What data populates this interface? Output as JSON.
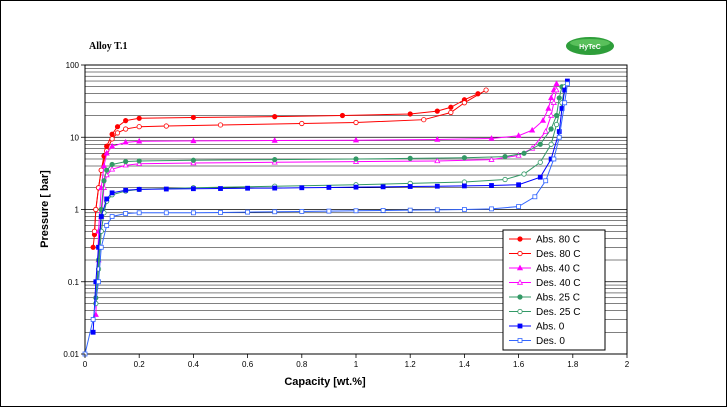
{
  "chart_data": {
    "type": "scatter",
    "title": "Alloy T.1",
    "logo_text": "HyTeC",
    "xlabel": "Capacity [wt.%]",
    "ylabel": "Pressure [ bar]",
    "xlim": [
      0,
      2
    ],
    "ylim": [
      0.01,
      100
    ],
    "yscale": "log",
    "xticks": [
      "0",
      "0.2",
      "0.4",
      "0.6",
      "0.8",
      "1",
      "1.2",
      "1.4",
      "1.6",
      "1.8",
      "2"
    ],
    "yticks": [
      "0.01",
      "0.1",
      "1",
      "10",
      "100"
    ],
    "grid": true,
    "legend_position": "bottom-right",
    "series": [
      {
        "name": "Abs. 80 C",
        "color": "#ff0000",
        "marker": "circle",
        "filled": true,
        "points": [
          [
            0.03,
            0.3
          ],
          [
            0.035,
            0.45
          ],
          [
            0.04,
            1.0
          ],
          [
            0.05,
            2.0
          ],
          [
            0.06,
            3.5
          ],
          [
            0.07,
            5.5
          ],
          [
            0.08,
            7.5
          ],
          [
            0.1,
            11
          ],
          [
            0.12,
            14
          ],
          [
            0.15,
            17
          ],
          [
            0.2,
            18.3
          ],
          [
            0.4,
            18.8
          ],
          [
            0.7,
            19.3
          ],
          [
            0.95,
            20
          ],
          [
            1.2,
            21
          ],
          [
            1.3,
            23
          ],
          [
            1.35,
            26
          ],
          [
            1.4,
            33
          ],
          [
            1.45,
            40
          ]
        ]
      },
      {
        "name": "Des. 80 C",
        "color": "#ff0000",
        "marker": "circle",
        "filled": false,
        "points": [
          [
            0.035,
            0.5
          ],
          [
            0.04,
            1.0
          ],
          [
            0.05,
            2.0
          ],
          [
            0.06,
            3.5
          ],
          [
            0.08,
            6.5
          ],
          [
            0.1,
            9.5
          ],
          [
            0.12,
            11.5
          ],
          [
            0.15,
            13
          ],
          [
            0.2,
            14
          ],
          [
            0.3,
            14.3
          ],
          [
            0.5,
            14.8
          ],
          [
            0.8,
            15.5
          ],
          [
            1.0,
            16
          ],
          [
            1.25,
            17.5
          ],
          [
            1.35,
            22
          ],
          [
            1.4,
            30
          ],
          [
            1.48,
            45
          ]
        ]
      },
      {
        "name": "Abs. 40 C",
        "color": "#ff00ff",
        "marker": "triangle",
        "filled": true,
        "points": [
          [
            0.04,
            0.035
          ],
          [
            0.045,
            0.1
          ],
          [
            0.05,
            0.5
          ],
          [
            0.06,
            2.0
          ],
          [
            0.07,
            4.0
          ],
          [
            0.08,
            6.0
          ],
          [
            0.1,
            7.5
          ],
          [
            0.15,
            8.5
          ],
          [
            0.2,
            8.8
          ],
          [
            0.4,
            8.9
          ],
          [
            0.7,
            9.0
          ],
          [
            1.0,
            9.1
          ],
          [
            1.3,
            9.3
          ],
          [
            1.5,
            9.6
          ],
          [
            1.6,
            10.5
          ],
          [
            1.65,
            12.5
          ],
          [
            1.69,
            17
          ],
          [
            1.71,
            25
          ],
          [
            1.72,
            35
          ],
          [
            1.73,
            45
          ],
          [
            1.74,
            55
          ]
        ]
      },
      {
        "name": "Des. 40 C",
        "color": "#ff00ff",
        "marker": "triangle",
        "filled": false,
        "points": [
          [
            0.05,
            0.2
          ],
          [
            0.06,
            0.8
          ],
          [
            0.07,
            2.0
          ],
          [
            0.08,
            3.0
          ],
          [
            0.1,
            3.6
          ],
          [
            0.15,
            4.1
          ],
          [
            0.2,
            4.3
          ],
          [
            0.4,
            4.4
          ],
          [
            0.7,
            4.5
          ],
          [
            1.0,
            4.6
          ],
          [
            1.3,
            4.7
          ],
          [
            1.5,
            4.9
          ],
          [
            1.6,
            5.6
          ],
          [
            1.65,
            7.0
          ],
          [
            1.7,
            12
          ],
          [
            1.72,
            20
          ],
          [
            1.73,
            30
          ],
          [
            1.74,
            45
          ]
        ]
      },
      {
        "name": "Abs. 25 C",
        "color": "#339966",
        "marker": "circle",
        "filled": true,
        "points": [
          [
            0.04,
            0.06
          ],
          [
            0.05,
            0.2
          ],
          [
            0.06,
            1.0
          ],
          [
            0.07,
            2.5
          ],
          [
            0.08,
            3.5
          ],
          [
            0.1,
            4.2
          ],
          [
            0.15,
            4.6
          ],
          [
            0.2,
            4.7
          ],
          [
            0.4,
            4.8
          ],
          [
            0.7,
            4.9
          ],
          [
            1.0,
            5.0
          ],
          [
            1.2,
            5.1
          ],
          [
            1.4,
            5.2
          ],
          [
            1.55,
            5.4
          ],
          [
            1.62,
            6.0
          ],
          [
            1.68,
            8.0
          ],
          [
            1.72,
            13
          ],
          [
            1.74,
            20
          ],
          [
            1.75,
            35
          ],
          [
            1.76,
            50
          ]
        ]
      },
      {
        "name": "Des. 25 C",
        "color": "#339966",
        "marker": "circle",
        "filled": false,
        "points": [
          [
            0.04,
            0.05
          ],
          [
            0.05,
            0.15
          ],
          [
            0.06,
            0.5
          ],
          [
            0.07,
            0.9
          ],
          [
            0.08,
            1.3
          ],
          [
            0.1,
            1.6
          ],
          [
            0.15,
            1.8
          ],
          [
            0.2,
            1.9
          ],
          [
            0.4,
            2.0
          ],
          [
            0.7,
            2.1
          ],
          [
            1.0,
            2.2
          ],
          [
            1.2,
            2.3
          ],
          [
            1.4,
            2.4
          ],
          [
            1.55,
            2.6
          ],
          [
            1.62,
            3.1
          ],
          [
            1.68,
            4.5
          ],
          [
            1.72,
            8
          ],
          [
            1.74,
            15
          ],
          [
            1.76,
            30
          ],
          [
            1.77,
            50
          ]
        ]
      },
      {
        "name": "Abs. 0",
        "color": "#0000ff",
        "marker": "square",
        "filled": true,
        "points": [
          [
            0.03,
            0.02
          ],
          [
            0.04,
            0.1
          ],
          [
            0.05,
            0.3
          ],
          [
            0.06,
            0.8
          ],
          [
            0.08,
            1.4
          ],
          [
            0.1,
            1.7
          ],
          [
            0.15,
            1.85
          ],
          [
            0.2,
            1.9
          ],
          [
            0.3,
            1.92
          ],
          [
            0.4,
            1.94
          ],
          [
            0.5,
            1.95
          ],
          [
            0.6,
            1.97
          ],
          [
            0.7,
            1.98
          ],
          [
            0.8,
            2.0
          ],
          [
            0.9,
            2.02
          ],
          [
            1.0,
            2.04
          ],
          [
            1.1,
            2.06
          ],
          [
            1.2,
            2.08
          ],
          [
            1.3,
            2.1
          ],
          [
            1.4,
            2.12
          ],
          [
            1.5,
            2.15
          ],
          [
            1.6,
            2.2
          ],
          [
            1.68,
            2.8
          ],
          [
            1.72,
            5
          ],
          [
            1.75,
            12
          ],
          [
            1.76,
            25
          ],
          [
            1.77,
            45
          ],
          [
            1.78,
            60
          ]
        ]
      },
      {
        "name": "Des. 0",
        "color": "#3366ff",
        "marker": "square",
        "filled": false,
        "points": [
          [
            0.0,
            0.01
          ],
          [
            0.03,
            0.03
          ],
          [
            0.05,
            0.1
          ],
          [
            0.06,
            0.3
          ],
          [
            0.08,
            0.6
          ],
          [
            0.1,
            0.8
          ],
          [
            0.15,
            0.88
          ],
          [
            0.2,
            0.9
          ],
          [
            0.3,
            0.9
          ],
          [
            0.4,
            0.9
          ],
          [
            0.5,
            0.91
          ],
          [
            0.6,
            0.92
          ],
          [
            0.7,
            0.93
          ],
          [
            0.8,
            0.94
          ],
          [
            0.9,
            0.95
          ],
          [
            1.0,
            0.96
          ],
          [
            1.1,
            0.97
          ],
          [
            1.2,
            0.98
          ],
          [
            1.3,
            0.99
          ],
          [
            1.4,
            1.0
          ],
          [
            1.5,
            1.02
          ],
          [
            1.6,
            1.1
          ],
          [
            1.66,
            1.5
          ],
          [
            1.7,
            2.5
          ],
          [
            1.73,
            5
          ],
          [
            1.75,
            10
          ],
          [
            1.77,
            30
          ],
          [
            1.78,
            55
          ]
        ]
      }
    ]
  }
}
